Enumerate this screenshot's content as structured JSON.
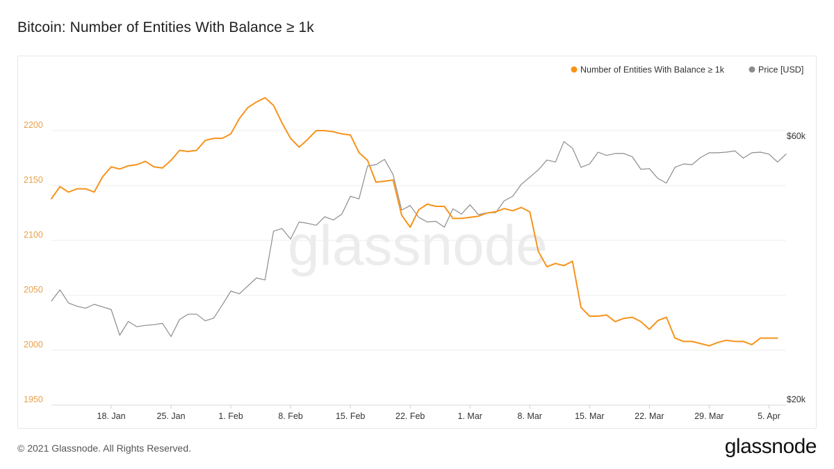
{
  "page": {
    "title": "Bitcoin: Number of Entities With Balance ≥ 1k",
    "footer": "© 2021 Glassnode. All Rights Reserved.",
    "logo": "glassnode",
    "watermark": "glassnode"
  },
  "colors": {
    "entities": "#f7931a",
    "price": "#8c8c8c",
    "left_axis": "#e8a04a",
    "right_axis": "#333333",
    "grid": "#ececec"
  },
  "chart_data": {
    "type": "line",
    "x_ticks": [
      "18. Jan",
      "25. Jan",
      "1. Feb",
      "8. Feb",
      "15. Feb",
      "22. Feb",
      "1. Mar",
      "8. Mar",
      "15. Mar",
      "22. Mar",
      "29. Mar",
      "5. Apr"
    ],
    "x_tick_day_index": [
      7,
      14,
      21,
      28,
      35,
      42,
      49,
      56,
      63,
      70,
      77,
      84
    ],
    "x_range_day_index": [
      0,
      86
    ],
    "y_left": {
      "ticks": [
        1950,
        2000,
        2050,
        2100,
        2150,
        2200
      ],
      "range": [
        1950,
        2250
      ]
    },
    "y_right": {
      "ticks": [
        "$20k",
        "$60k"
      ],
      "tick_values": [
        20000,
        60000
      ],
      "range": [
        20000,
        70000
      ]
    },
    "legend": [
      "Number of Entities With Balance ≥ 1k",
      "Price [USD]"
    ],
    "legend_position": "top-right",
    "grid": true,
    "series": [
      {
        "name": "Number of Entities With Balance ≥ 1k",
        "axis": "left",
        "values": [
          2138,
          2149,
          2144,
          2147,
          2147,
          2144,
          2158,
          2167,
          2165,
          2168,
          2169,
          2172,
          2167,
          2166,
          2173,
          2182,
          2181,
          2182,
          2191,
          2193,
          2193,
          2197,
          2211,
          2221,
          2226,
          2230,
          2223,
          2207,
          2193,
          2185,
          2192,
          2200,
          2200,
          2199,
          2197,
          2196,
          2180,
          2173,
          2153,
          2154,
          2155,
          2123,
          2112,
          2128,
          2133,
          2131,
          2131,
          2120,
          2120,
          2121,
          2122,
          2125,
          2126,
          2129,
          2127,
          2130,
          2126,
          2090,
          2076,
          2079,
          2077,
          2081,
          2039,
          2031,
          2031,
          2032,
          2026,
          2029,
          2030,
          2026,
          2019,
          2027,
          2030,
          2011,
          2008,
          2008,
          2006,
          2004,
          2007,
          2009,
          2008,
          2008,
          2005,
          2011,
          2011,
          2011
        ]
      },
      {
        "name": "Price [USD]",
        "axis": "right",
        "values": [
          35800,
          37500,
          35500,
          35000,
          34700,
          35300,
          34900,
          34500,
          30600,
          32700,
          31900,
          32100,
          32200,
          32400,
          30400,
          33000,
          33800,
          33800,
          32800,
          33200,
          35200,
          37300,
          36900,
          38100,
          39300,
          39000,
          46400,
          46800,
          45200,
          47800,
          47600,
          47300,
          48600,
          48100,
          49000,
          51700,
          51300,
          56300,
          56500,
          57300,
          55000,
          49600,
          50300,
          48500,
          47800,
          47900,
          47000,
          49800,
          49000,
          50400,
          48900,
          49200,
          49200,
          51000,
          51700,
          53500,
          54600,
          55700,
          57200,
          56900,
          60000,
          59000,
          56100,
          56600,
          58400,
          57900,
          58200,
          58200,
          57700,
          55800,
          55900,
          54400,
          53700,
          56100,
          56600,
          56500,
          57600,
          58300,
          58300,
          58400,
          58600,
          57500,
          58300,
          58400,
          58100,
          56900,
          58100
        ]
      }
    ]
  }
}
